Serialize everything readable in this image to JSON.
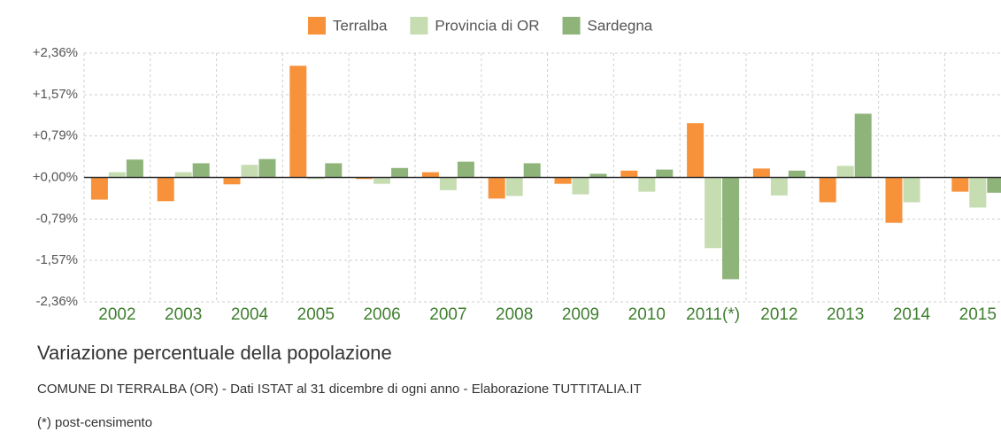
{
  "chart_data": {
    "type": "bar",
    "title": "Variazione percentuale della popolazione",
    "subtitle": "COMUNE DI TERRALBA (OR) - Dati ISTAT al 31 dicembre di ogni anno - Elaborazione TUTTITALIA.IT",
    "note": "(*) post-censimento",
    "categories": [
      "2002",
      "2003",
      "2004",
      "2005",
      "2006",
      "2007",
      "2008",
      "2009",
      "2010",
      "2011(*)",
      "2012",
      "2013",
      "2014",
      "2015"
    ],
    "series": [
      {
        "name": "Terralba",
        "color": "#f7923a",
        "values": [
          -0.42,
          -0.45,
          -0.13,
          2.12,
          -0.03,
          0.1,
          -0.4,
          -0.12,
          0.13,
          1.03,
          0.17,
          -0.47,
          -0.86,
          -0.27
        ]
      },
      {
        "name": "Provincia di OR",
        "color": "#c6dcb1",
        "values": [
          0.1,
          0.1,
          0.24,
          -0.03,
          -0.12,
          -0.24,
          -0.35,
          -0.32,
          -0.27,
          -1.34,
          -0.34,
          0.22,
          -0.47,
          -0.57
        ]
      },
      {
        "name": "Sardegna",
        "color": "#8eb47a",
        "values": [
          0.34,
          0.27,
          0.35,
          0.27,
          0.18,
          0.3,
          0.27,
          0.07,
          0.15,
          -1.93,
          0.13,
          1.21,
          0.0,
          -0.29
        ]
      }
    ],
    "ylim": [
      -2.36,
      2.36
    ],
    "yticks": [
      {
        "value": 2.36,
        "label": "+2,36%"
      },
      {
        "value": 1.57,
        "label": "+1,57%"
      },
      {
        "value": 0.79,
        "label": "+0,79%"
      },
      {
        "value": 0,
        "label": "+0,00%"
      },
      {
        "value": -0.79,
        "label": "-0,79%"
      },
      {
        "value": -1.57,
        "label": "-1,57%"
      },
      {
        "value": -2.36,
        "label": "-2,36%"
      }
    ],
    "grid": true,
    "legend": "top"
  }
}
